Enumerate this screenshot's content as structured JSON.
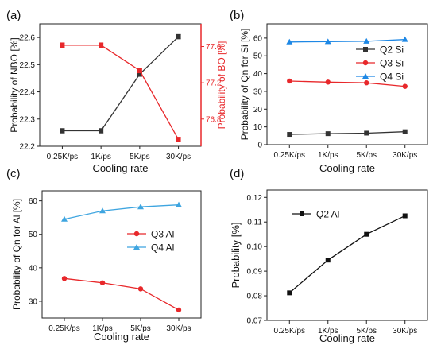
{
  "chart_data": [
    {
      "panel_label": "(a)",
      "type": "line",
      "categories": [
        "0.25K/ps",
        "1K/ps",
        "5K/ps",
        "30K/ps"
      ],
      "xlabel": "Cooling rate",
      "ylabel": "Probability of NBO [%]",
      "ylim": [
        22.2,
        22.65
      ],
      "yticks": [
        "22.2",
        "22.3",
        "22.4",
        "22.5",
        "22.6"
      ],
      "ylabel_right": "Probability of BO [%]",
      "ylim_right": [
        76.5,
        77.85
      ],
      "yticks_right": [
        "76.8",
        "77.2",
        "77.6"
      ],
      "grid": false,
      "series": [
        {
          "values": [
            22.257,
            22.257,
            22.465,
            22.603
          ],
          "axis": "left",
          "color": "#333333",
          "marker": "square",
          "error": [
            0.008,
            0.008,
            0.008,
            0.008
          ]
        },
        {
          "values": [
            77.615,
            77.615,
            77.335,
            76.575
          ],
          "axis": "right",
          "color": "#e8282b",
          "marker": "square",
          "error": [
            0.025,
            0.025,
            0.025,
            0.025
          ]
        }
      ]
    },
    {
      "panel_label": "(b)",
      "type": "line",
      "categories": [
        "0.25K/ps",
        "1K/ps",
        "5K/ps",
        "30K/ps"
      ],
      "xlabel": "Cooling rate",
      "ylabel": "Probability of Qn for Si [%]",
      "ylim": [
        0,
        68
      ],
      "yticks": [
        "0",
        "10",
        "20",
        "30",
        "40",
        "50",
        "60"
      ],
      "legend": "right",
      "grid": false,
      "series": [
        {
          "name": "Q2 Si",
          "values": [
            5.8,
            6.2,
            6.5,
            7.3
          ],
          "color": "#333333",
          "marker": "square"
        },
        {
          "name": "Q3 Si",
          "values": [
            35.8,
            35.2,
            34.8,
            32.8
          ],
          "color": "#e8282b",
          "marker": "circle"
        },
        {
          "name": "Q4 Si",
          "values": [
            57.8,
            58.0,
            58.2,
            59.2
          ],
          "color": "#1e88e5",
          "marker": "triangle"
        }
      ]
    },
    {
      "panel_label": "(c)",
      "type": "line",
      "categories": [
        "0.25K/ps",
        "1K/ps",
        "5K/ps",
        "30K/ps"
      ],
      "xlabel": "Cooling rate",
      "ylabel": "Probability of Qn for Al [%]",
      "ylim": [
        25,
        63
      ],
      "yticks": [
        "30",
        "40",
        "50",
        "60"
      ],
      "legend": "center-left",
      "grid": false,
      "series": [
        {
          "name": "Q3 Al",
          "values": [
            36.8,
            35.5,
            33.7,
            27.4
          ],
          "color": "#e8282b",
          "marker": "circle"
        },
        {
          "name": "Q4 Al",
          "values": [
            54.5,
            57.0,
            58.2,
            58.8
          ],
          "color": "#3ea5e0",
          "marker": "triangle"
        }
      ]
    },
    {
      "panel_label": "(d)",
      "type": "line",
      "categories": [
        "0.25K/ps",
        "1K/ps",
        "5K/ps",
        "30K/ps"
      ],
      "xlabel": "Cooling rate",
      "ylabel": "Probability [%]",
      "ylim": [
        0.07,
        0.123
      ],
      "yticks": [
        "0.07",
        "0.08",
        "0.09",
        "0.10",
        "0.11",
        "0.12"
      ],
      "legend": "top-left",
      "grid": false,
      "series": [
        {
          "name": "Q2 Al",
          "values": [
            0.0812,
            0.0945,
            0.105,
            0.1125
          ],
          "color": "#111111",
          "marker": "square"
        }
      ]
    }
  ]
}
